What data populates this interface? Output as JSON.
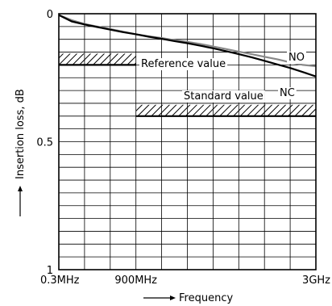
{
  "chart_data": {
    "type": "line",
    "xlabel": "Frequency",
    "ylabel": "Insertion loss, dB",
    "x_tick_labels": [
      "0.3MHz",
      "900MHz",
      "3GHz"
    ],
    "x_ticks": [
      0.3,
      900,
      3000
    ],
    "x_range": [
      0.3,
      3000
    ],
    "y_tick_labels": [
      "0",
      "0.5",
      "1"
    ],
    "y_ticks": [
      0,
      0.5,
      1
    ],
    "ylim": [
      0,
      1
    ],
    "y_inverted": true,
    "grid": true,
    "series": [
      {
        "name": "NO",
        "color": "#888888",
        "x": [
          0.3,
          150,
          300,
          450,
          600,
          750,
          900,
          1050,
          1200,
          1350,
          1500,
          1650,
          1800,
          1950,
          2100,
          2250,
          2400,
          2550,
          2700,
          2850,
          3000
        ],
        "y": [
          0.005,
          0.025,
          0.04,
          0.05,
          0.06,
          0.07,
          0.08,
          0.088,
          0.095,
          0.103,
          0.11,
          0.118,
          0.128,
          0.138,
          0.148,
          0.158,
          0.168,
          0.178,
          0.19,
          0.2,
          0.205
        ]
      },
      {
        "name": "NC",
        "color": "#000000",
        "x": [
          0.3,
          150,
          300,
          450,
          600,
          750,
          900,
          1050,
          1200,
          1350,
          1500,
          1650,
          1800,
          1950,
          2100,
          2250,
          2400,
          2550,
          2700,
          2850,
          3000
        ],
        "y": [
          0.005,
          0.03,
          0.042,
          0.052,
          0.062,
          0.072,
          0.08,
          0.09,
          0.098,
          0.107,
          0.115,
          0.125,
          0.135,
          0.146,
          0.158,
          0.17,
          0.184,
          0.198,
          0.212,
          0.228,
          0.245
        ]
      }
    ],
    "limits": [
      {
        "label": "Reference value",
        "value": 0.2,
        "x_range": [
          0.3,
          900
        ],
        "hatched": true
      },
      {
        "label": "Standard value",
        "value": 0.4,
        "x_range": [
          900,
          3000
        ],
        "hatched": true
      }
    ],
    "series_labels": [
      {
        "text": "NO",
        "series": "NO"
      },
      {
        "text": "NC",
        "series": "NC"
      }
    ]
  }
}
